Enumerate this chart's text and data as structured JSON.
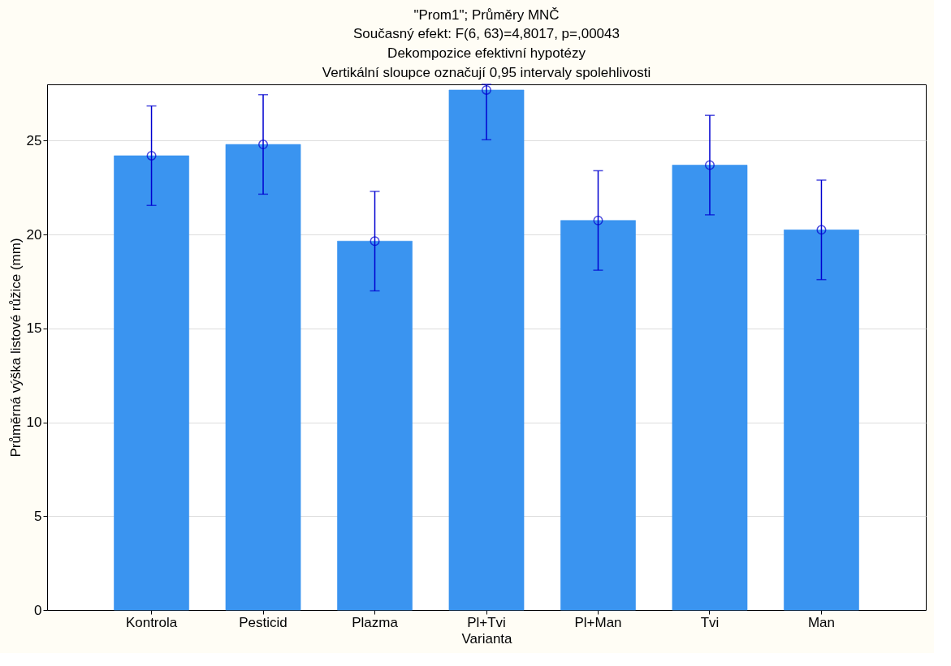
{
  "chart_data": {
    "type": "bar",
    "title": "\"Prom1\"; Průměry MNČ",
    "subtitle": "Současný efekt: F(6, 63)=4,8017, p=,00043\nDekompozice efektivní hypotézy\nVertikální sloupce označují 0,95 intervaly spolehlivosti",
    "xlabel": "Varianta",
    "ylabel": "Průměrná výška listové růžice (mm)",
    "categories": [
      "Kontrola",
      "Pesticid",
      "Plazma",
      "Pl+Tvi",
      "Pl+Man",
      "Tvi",
      "Man"
    ],
    "series": [
      {
        "color": "#3a94f0",
        "values": [
          24.2,
          24.8,
          19.65,
          27.7,
          20.75,
          23.7,
          20.25
        ]
      },
      {
        "type": "scatter",
        "color": "#0000d0",
        "marker": "circle",
        "x": [
          "Kontrola",
          "Pesticid",
          "Plazma",
          "Pl+Tvi",
          "Pl+Man",
          "Tvi",
          "Man"
        ],
        "values": [
          24.2,
          24.8,
          19.65,
          27.7,
          20.75,
          23.7,
          20.25
        ],
        "errors": [
          2.65,
          2.65,
          2.65,
          [
            25.05,
            28
          ],
          2.65,
          2.65,
          2.65
        ]
      }
    ],
    "ylim": [
      0,
      28
    ],
    "yticks": [
      0,
      5,
      10,
      15,
      20,
      25
    ],
    "grid": "y"
  }
}
